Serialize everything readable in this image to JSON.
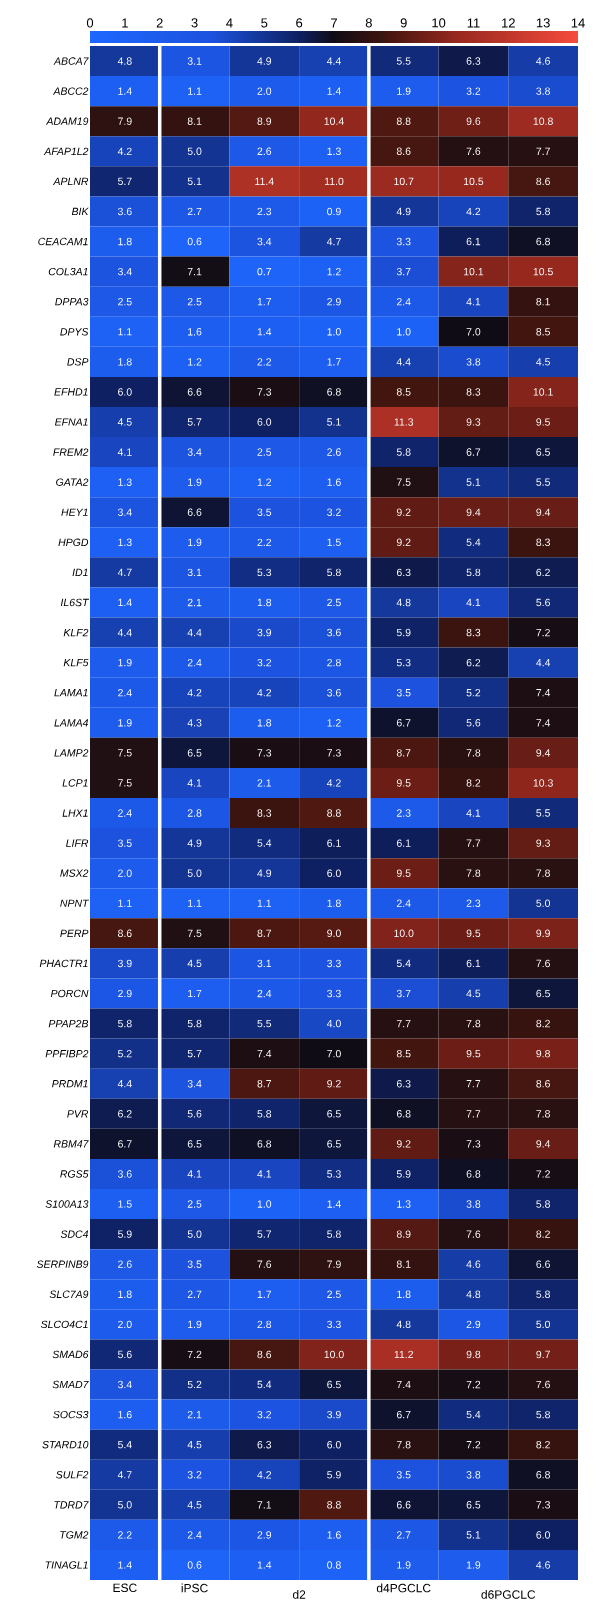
{
  "chart_data": {
    "type": "heatmap",
    "categories": [
      "ESC",
      "iPSC",
      null,
      null,
      "d4PGCLC",
      null,
      null
    ],
    "annotations": [
      "d2",
      "d6PGCLC"
    ],
    "y_categories": [
      "ABCA7",
      "ABCC2",
      "ADAM19",
      "AFAP1L2",
      "APLNR",
      "BIK",
      "CEACAM1",
      "COL3A1",
      "DPPA3",
      "DPYS",
      "DSP",
      "EFHD1",
      "EFNA1",
      "FREM2",
      "GATA2",
      "HEY1",
      "HPGD",
      "ID1",
      "IL6ST",
      "KLF2",
      "KLF5",
      "LAMA1",
      "LAMA4",
      "LAMP2",
      "LCP1",
      "LHX1",
      "LIFR",
      "MSX2",
      "NPNT",
      "PERP",
      "PHACTR1",
      "PORCN",
      "PPAP2B",
      "PPFIBP2",
      "PRDM1",
      "PVR",
      "RBM47",
      "RGS5",
      "S100A13",
      "SDC4",
      "SERPINB9",
      "SLC7A9",
      "SLCO4C1",
      "SMAD6",
      "SMAD7",
      "SOCS3",
      "STARD10",
      "SULF2",
      "TDRD7",
      "TGM2",
      "TINAGL1"
    ],
    "cells": [
      [
        4.8,
        3.1,
        4.9,
        4.4,
        5.5,
        6.3,
        4.6
      ],
      [
        1.4,
        1.1,
        2.0,
        1.4,
        1.9,
        3.2,
        3.8
      ],
      [
        7.9,
        8.1,
        8.9,
        10.4,
        8.8,
        9.6,
        10.8
      ],
      [
        4.2,
        5.0,
        2.6,
        1.3,
        8.6,
        7.6,
        7.7
      ],
      [
        5.7,
        5.1,
        11.4,
        11.0,
        10.7,
        10.5,
        8.6
      ],
      [
        3.6,
        2.7,
        2.3,
        0.9,
        4.9,
        4.2,
        5.8
      ],
      [
        1.8,
        0.6,
        3.4,
        4.7,
        3.3,
        6.1,
        6.8
      ],
      [
        3.4,
        7.1,
        0.7,
        1.2,
        3.7,
        10.1,
        10.5
      ],
      [
        2.5,
        2.5,
        1.7,
        2.9,
        2.4,
        4.1,
        8.1
      ],
      [
        1.1,
        1.6,
        1.4,
        1.0,
        1.0,
        7.0,
        8.5
      ],
      [
        1.8,
        1.2,
        2.2,
        1.7,
        4.4,
        3.8,
        4.5
      ],
      [
        6.0,
        6.6,
        7.3,
        6.8,
        8.5,
        8.3,
        10.1
      ],
      [
        4.5,
        5.7,
        6.0,
        5.1,
        11.3,
        9.3,
        9.5
      ],
      [
        4.1,
        3.4,
        2.5,
        2.6,
        5.8,
        6.7,
        6.5
      ],
      [
        1.3,
        1.9,
        1.2,
        1.6,
        7.5,
        5.1,
        5.5
      ],
      [
        3.4,
        6.6,
        3.5,
        3.2,
        9.2,
        9.4,
        9.4
      ],
      [
        1.3,
        1.9,
        2.2,
        1.5,
        9.2,
        5.4,
        8.3
      ],
      [
        4.7,
        3.1,
        5.3,
        5.8,
        6.3,
        5.8,
        6.2
      ],
      [
        1.4,
        2.1,
        1.8,
        2.5,
        4.8,
        4.1,
        5.6
      ],
      [
        4.4,
        4.4,
        3.9,
        3.6,
        5.9,
        8.3,
        7.2
      ],
      [
        1.9,
        2.4,
        3.2,
        2.8,
        5.3,
        6.2,
        4.4
      ],
      [
        2.4,
        4.2,
        4.2,
        3.6,
        3.5,
        5.2,
        7.4
      ],
      [
        1.9,
        4.3,
        1.8,
        1.2,
        6.7,
        5.6,
        7.4
      ],
      [
        7.5,
        6.5,
        7.3,
        7.3,
        8.7,
        7.8,
        9.4
      ],
      [
        7.5,
        4.1,
        2.1,
        4.2,
        9.5,
        8.2,
        10.3
      ],
      [
        2.4,
        2.8,
        8.3,
        8.8,
        2.3,
        4.1,
        5.5
      ],
      [
        3.5,
        4.9,
        5.4,
        6.1,
        6.1,
        7.7,
        9.3
      ],
      [
        2.0,
        5.0,
        4.9,
        6.0,
        9.5,
        7.8,
        7.8
      ],
      [
        1.1,
        1.1,
        1.1,
        1.8,
        2.4,
        2.3,
        5.0
      ],
      [
        8.6,
        7.5,
        8.7,
        9.0,
        10.0,
        9.5,
        9.9
      ],
      [
        3.9,
        4.5,
        3.1,
        3.3,
        5.4,
        6.1,
        7.6
      ],
      [
        2.9,
        1.7,
        2.4,
        3.3,
        3.7,
        4.5,
        6.5
      ],
      [
        5.8,
        5.8,
        5.5,
        4.0,
        7.7,
        7.8,
        8.2
      ],
      [
        5.2,
        5.7,
        7.4,
        7.0,
        8.5,
        9.5,
        9.8
      ],
      [
        4.4,
        3.4,
        8.7,
        9.2,
        6.3,
        7.7,
        8.6
      ],
      [
        6.2,
        5.6,
        5.8,
        6.5,
        6.8,
        7.7,
        7.8
      ],
      [
        6.7,
        6.5,
        6.8,
        6.5,
        9.2,
        7.3,
        9.4
      ],
      [
        3.6,
        4.1,
        4.1,
        5.3,
        5.9,
        6.8,
        7.2
      ],
      [
        1.5,
        2.5,
        1.0,
        1.4,
        1.3,
        3.8,
        5.8
      ],
      [
        5.9,
        5.0,
        5.7,
        5.8,
        8.9,
        7.6,
        8.2
      ],
      [
        2.6,
        3.5,
        7.6,
        7.9,
        8.1,
        4.6,
        6.6
      ],
      [
        1.8,
        2.7,
        1.7,
        2.5,
        1.8,
        4.8,
        5.8
      ],
      [
        2.0,
        1.9,
        2.8,
        3.3,
        4.8,
        2.9,
        5.0
      ],
      [
        5.6,
        7.2,
        8.6,
        10.0,
        11.2,
        9.8,
        9.7
      ],
      [
        3.4,
        5.2,
        5.4,
        6.5,
        7.4,
        7.2,
        7.6
      ],
      [
        1.6,
        2.1,
        3.2,
        3.9,
        6.7,
        5.4,
        5.8
      ],
      [
        5.4,
        4.5,
        6.3,
        6.0,
        7.8,
        7.2,
        8.2
      ],
      [
        4.7,
        3.2,
        4.2,
        5.9,
        3.5,
        3.8,
        6.8
      ],
      [
        5.0,
        4.5,
        7.1,
        8.8,
        6.6,
        6.5,
        7.3
      ],
      [
        2.2,
        2.4,
        2.9,
        1.6,
        2.7,
        5.1,
        6.0
      ],
      [
        1.4,
        0.6,
        1.4,
        0.8,
        1.9,
        1.9,
        4.6
      ]
    ],
    "cell_labels": [
      [
        "4.8",
        "3.1",
        "4.9",
        "4.4",
        "5.5",
        "6.3",
        "4.6"
      ],
      [
        "1.4",
        "1.1",
        "2.0",
        "1.4",
        "1.9",
        "3.2",
        "3.8"
      ],
      [
        "7.9",
        "8.1",
        "8.9",
        "10.4",
        "8.8",
        "9.6",
        "10.8"
      ],
      [
        "4.2",
        "5.0",
        "2.6",
        "1.3",
        "8.6",
        "7.6",
        "7.7"
      ],
      [
        "5.7",
        "5.1",
        "11.4",
        "11.0",
        "10.7",
        "10.5",
        "8.6"
      ],
      [
        "3.6",
        "2.7",
        "2.3",
        "0.9",
        "4.9",
        "4.2",
        "5.8"
      ],
      [
        "1.8",
        "0.6",
        "3.4",
        "4.7",
        "3.3",
        "6.1",
        "6.8"
      ],
      [
        "3.4",
        "7.1",
        "0.7",
        "1.2",
        "3.7",
        "10.1",
        "10.5"
      ],
      [
        "2.5",
        "2.5",
        "1.7",
        "2.9",
        "2.4",
        "4.1",
        "8.1"
      ],
      [
        "1.1",
        "1.6",
        "1.4",
        "1.0",
        "1.0",
        "7.0",
        "8.5"
      ],
      [
        "1.8",
        "1.2",
        "2.2",
        "1.7",
        "4.4",
        "3.8",
        "4.5"
      ],
      [
        "6.0",
        "6.6",
        "7.3",
        "6.8",
        "8.5",
        "8.3",
        "10.1"
      ],
      [
        "4.5",
        "5.7",
        "6.0",
        "5.1",
        "11.3",
        "9.3",
        "9.5"
      ],
      [
        "4.1",
        "3.4",
        "2.5",
        "2.6",
        "5.8",
        "6.7",
        "6.5"
      ],
      [
        "1.3",
        "1.9",
        "1.2",
        "1.6",
        "7.5",
        "5.1",
        "5.5"
      ],
      [
        "3.4",
        "6.6",
        "3.5",
        "3.2",
        "9.2",
        "9.4",
        "9.4"
      ],
      [
        "1.3",
        "1.9",
        "2.2",
        "1.5",
        "9.2",
        "5.4",
        "8.3"
      ],
      [
        "4.7",
        "3.1",
        "5.3",
        "5.8",
        "6.3",
        "5.8",
        "6.2"
      ],
      [
        "1.4",
        "2.1",
        "1.8",
        "2.5",
        "4.8",
        "4.1",
        "5.6"
      ],
      [
        "4.4",
        "4.4",
        "3.9",
        "3.6",
        "5.9",
        "8.3",
        "7.2"
      ],
      [
        "1.9",
        "2.4",
        "3.2",
        "2.8",
        "5.3",
        "6.2",
        "4.4"
      ],
      [
        "2.4",
        "4.2",
        "4.2",
        "3.6",
        "3.5",
        "5.2",
        "7.4"
      ],
      [
        "1.9",
        "4.3",
        "1.8",
        "1.2",
        "6.7",
        "5.6",
        "7.4"
      ],
      [
        "7.5",
        "6.5",
        "7.3",
        "7.3",
        "8.7",
        "7.8",
        "9.4"
      ],
      [
        "7.5",
        "4.1",
        "2.1",
        "4.2",
        "9.5",
        "8.2",
        "10.3"
      ],
      [
        "2.4",
        "2.8",
        "8.3",
        "8.8",
        "2.3",
        "4.1",
        "5.5"
      ],
      [
        "3.5",
        "4.9",
        "5.4",
        "6.1",
        "6.1",
        "7.7",
        "9.3"
      ],
      [
        "2.0",
        "5.0",
        "4.9",
        "6.0",
        "9.5",
        "7.8",
        "7.8"
      ],
      [
        "1.1",
        "1.1",
        "1.1",
        "1.8",
        "2.4",
        "2.3",
        "5.0"
      ],
      [
        "8.6",
        "7.5",
        "8.7",
        "9.0",
        "10.0",
        "9.5",
        "9.9"
      ],
      [
        "3.9",
        "4.5",
        "3.1",
        "3.3",
        "5.4",
        "6.1",
        "7.6"
      ],
      [
        "2.9",
        "1.7",
        "2.4",
        "3.3",
        "3.7",
        "4.5",
        "6.5"
      ],
      [
        "5.8",
        "5.8",
        "5.5",
        "4.0",
        "7.7",
        "7.8",
        "8.2"
      ],
      [
        "5.2",
        "5.7",
        "7.4",
        "7.0",
        "8.5",
        "9.5",
        "9.8"
      ],
      [
        "4.4",
        "3.4",
        "8.7",
        "9.2",
        "6.3",
        "7.7",
        "8.6"
      ],
      [
        "6.2",
        "5.6",
        "5.8",
        "6.5",
        "6.8",
        "7.7",
        "7.8"
      ],
      [
        "6.7",
        "6.5",
        "6.8",
        "6.5",
        "9.2",
        "7.3",
        "9.4"
      ],
      [
        "3.6",
        "4.1",
        "4.1",
        "5.3",
        "5.9",
        "6.8",
        "7.2"
      ],
      [
        "1.5",
        "2.5",
        "1.0",
        "1.4",
        "1.3",
        "3.8",
        "5.8"
      ],
      [
        "5.9",
        "5.0",
        "5.7",
        "5.8",
        "8.9",
        "7.6",
        "8.2"
      ],
      [
        "2.6",
        "3.5",
        "7.6",
        "7.9",
        "8.1",
        "4.6",
        "6.6"
      ],
      [
        "1.8",
        "2.7",
        "1.7",
        "2.5",
        "1.8",
        "4.8",
        "5.8"
      ],
      [
        "2.0",
        "1.9",
        "2.8",
        "3.3",
        "4.8",
        "2.9",
        "5.0"
      ],
      [
        "5.6",
        "7.2",
        "8.6",
        "10.0",
        "11.2",
        "9.8",
        "9.7"
      ],
      [
        "3.4",
        "5.2",
        "5.4",
        "6.5",
        "7.4",
        "7.2",
        "7.6"
      ],
      [
        "1.6",
        "2.1",
        "3.2",
        "3.9",
        "6.7",
        "5.4",
        "5.8"
      ],
      [
        "5.4",
        "4.5",
        "6.3",
        "6.0",
        "7.8",
        "7.2",
        "8.2"
      ],
      [
        "4.7",
        "3.2",
        "4.2",
        "5.9",
        "3.5",
        "3.8",
        "6.8"
      ],
      [
        "5.0",
        "4.5",
        "7.1",
        "8.8",
        "6.6",
        "6.5",
        "7.3"
      ],
      [
        "2.2",
        "2.4",
        "2.9",
        "1.6",
        "2.7",
        "5.1",
        "6.0"
      ],
      [
        "1.4",
        "0.6",
        "1.4",
        "0.8",
        "1.9",
        "1.9",
        "4.6"
      ]
    ],
    "clim": [
      0,
      14
    ],
    "cticks": [
      0,
      1,
      2,
      3,
      4,
      5,
      6,
      7,
      8,
      9,
      10,
      11,
      12,
      13,
      14
    ]
  }
}
